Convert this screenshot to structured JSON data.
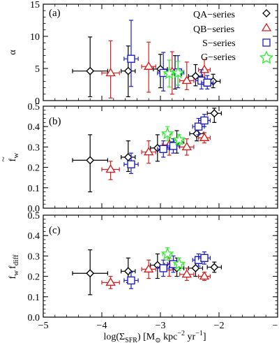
{
  "figure": {
    "xlabel": "log(Σ_SFR) [M⊙ kpc⁻² yr⁻¹]",
    "xlabel_parts": {
      "log_open": "log(Σ",
      "sub": "SFR",
      "mid": ") [M",
      "sun": "⊙",
      "unit_tail": " kpc",
      "exp2": "−2",
      "yr": " yr",
      "exp1": "−1",
      "close": "]"
    },
    "xlim": [
      -5,
      -1
    ],
    "xticks": [
      -5,
      -4,
      -3,
      -2,
      -1
    ],
    "xtick_labels": [
      "−5",
      "−4",
      "−3",
      "−2",
      "−1"
    ]
  },
  "legend": {
    "entries": [
      {
        "label": "QA−series",
        "marker": "diamond",
        "color": "#000000"
      },
      {
        "label": "QB−series",
        "marker": "triangle",
        "color": "#d42020"
      },
      {
        "label": "S−series",
        "marker": "square",
        "color": "#1c1cc8"
      },
      {
        "label": "G−series",
        "marker": "star",
        "color": "#33ee33"
      }
    ]
  },
  "colors": {
    "QA": "#000000",
    "QB": "#d42020",
    "S": "#1c1cc8",
    "G": "#33ee33"
  },
  "chart_data": [
    {
      "type": "scatter",
      "panel": "(a)",
      "ylabel": "α",
      "ylim": [
        0,
        15
      ],
      "yticks": [
        0,
        5,
        10,
        15
      ],
      "ytick_labels": [
        "0",
        "5",
        "10",
        "15"
      ],
      "series": [
        {
          "name": "QA−series",
          "points": [
            {
              "x": -4.2,
              "y": 4.6,
              "xerr": 0.3,
              "ylo": 0.6,
              "yhi": 9.9
            },
            {
              "x": -3.55,
              "y": 4.6,
              "xerr": 0.12,
              "ylo": 0.6,
              "yhi": 8.5
            },
            {
              "x": -3.0,
              "y": 4.9,
              "xerr": 0.12,
              "ylo": 2.0,
              "yhi": 7.2
            },
            {
              "x": -2.75,
              "y": 4.4,
              "xerr": 0.12,
              "ylo": 1.8,
              "yhi": 7.0
            },
            {
              "x": -2.4,
              "y": 3.8,
              "xerr": 0.12,
              "ylo": 2.3,
              "yhi": 5.6
            },
            {
              "x": -2.1,
              "y": 3.0,
              "xerr": 0.12,
              "ylo": 2.0,
              "yhi": 4.1
            }
          ]
        },
        {
          "name": "QB−series",
          "points": [
            {
              "x": -3.85,
              "y": 4.3,
              "xerr": 0.15,
              "ylo": 0.4,
              "yhi": 9.3
            },
            {
              "x": -3.2,
              "y": 5.3,
              "xerr": 0.12,
              "ylo": 1.3,
              "yhi": 9.1
            },
            {
              "x": -2.8,
              "y": 4.5,
              "xerr": 0.12,
              "ylo": 1.0,
              "yhi": 7.6
            },
            {
              "x": -2.55,
              "y": 3.1,
              "xerr": 0.12,
              "ylo": 1.7,
              "yhi": 6.0
            },
            {
              "x": -2.25,
              "y": 4.8,
              "xerr": 0.1,
              "ylo": 2.5,
              "yhi": 6.4
            }
          ]
        },
        {
          "name": "S−series",
          "points": [
            {
              "x": -3.5,
              "y": 6.5,
              "xerr": 0.12,
              "ylo": 2.2,
              "yhi": 12.5
            },
            {
              "x": -2.95,
              "y": 4.3,
              "xerr": 0.1,
              "ylo": 1.5,
              "yhi": 7.5
            },
            {
              "x": -2.7,
              "y": 4.4,
              "xerr": 0.1,
              "ylo": 2.0,
              "yhi": 7.0
            },
            {
              "x": -2.3,
              "y": 3.1,
              "xerr": 0.1,
              "ylo": 1.8,
              "yhi": 4.8
            },
            {
              "x": -2.2,
              "y": 2.8,
              "xerr": 0.1,
              "ylo": 1.8,
              "yhi": 3.9
            }
          ]
        },
        {
          "name": "G−series",
          "points": [
            {
              "x": -2.85,
              "y": 4.2,
              "xerr": 0.08,
              "ylo": 2.1,
              "yhi": 6.3
            },
            {
              "x": -2.7,
              "y": 4.3,
              "xerr": 0.08,
              "ylo": 2.4,
              "yhi": 6.1
            }
          ]
        }
      ]
    },
    {
      "type": "scatter",
      "panel": "(b)",
      "ylabel": "f̃_w",
      "ylabel_parts": {
        "base": "f",
        "tilde": "~",
        "sub": "w"
      },
      "ylim": [
        0,
        0.5
      ],
      "yticks": [
        0.0,
        0.1,
        0.2,
        0.3,
        0.4,
        0.5
      ],
      "ytick_labels": [
        "0.0",
        "0.1",
        "0.2",
        "0.3",
        "0.4",
        "0.5"
      ],
      "series": [
        {
          "name": "QA−series",
          "points": [
            {
              "x": -4.2,
              "y": 0.235,
              "xerr": 0.3,
              "ylo": 0.08,
              "yhi": 0.36
            },
            {
              "x": -3.55,
              "y": 0.25,
              "xerr": 0.12,
              "ylo": 0.18,
              "yhi": 0.33
            },
            {
              "x": -3.05,
              "y": 0.295,
              "xerr": 0.12,
              "ylo": 0.23,
              "yhi": 0.36
            },
            {
              "x": -2.72,
              "y": 0.325,
              "xerr": 0.12,
              "ylo": 0.27,
              "yhi": 0.38
            },
            {
              "x": -2.38,
              "y": 0.365,
              "xerr": 0.12,
              "ylo": 0.33,
              "yhi": 0.41
            },
            {
              "x": -2.08,
              "y": 0.465,
              "xerr": 0.12,
              "ylo": 0.42,
              "yhi": 0.49
            }
          ]
        },
        {
          "name": "QB−series",
          "points": [
            {
              "x": -3.85,
              "y": 0.19,
              "xerr": 0.15,
              "ylo": 0.14,
              "yhi": 0.23
            },
            {
              "x": -3.2,
              "y": 0.275,
              "xerr": 0.12,
              "ylo": 0.22,
              "yhi": 0.33
            },
            {
              "x": -2.85,
              "y": 0.31,
              "xerr": 0.12,
              "ylo": 0.26,
              "yhi": 0.36
            },
            {
              "x": -2.55,
              "y": 0.3,
              "xerr": 0.12,
              "ylo": 0.26,
              "yhi": 0.34
            },
            {
              "x": -2.25,
              "y": 0.345,
              "xerr": 0.1,
              "ylo": 0.32,
              "yhi": 0.37
            }
          ]
        },
        {
          "name": "S−series",
          "points": [
            {
              "x": -3.5,
              "y": 0.215,
              "xerr": 0.12,
              "ylo": 0.17,
              "yhi": 0.27
            },
            {
              "x": -2.95,
              "y": 0.29,
              "xerr": 0.1,
              "ylo": 0.25,
              "yhi": 0.33
            },
            {
              "x": -2.78,
              "y": 0.305,
              "xerr": 0.1,
              "ylo": 0.27,
              "yhi": 0.34
            },
            {
              "x": -2.35,
              "y": 0.4,
              "xerr": 0.1,
              "ylo": 0.36,
              "yhi": 0.44
            },
            {
              "x": -2.25,
              "y": 0.43,
              "xerr": 0.1,
              "ylo": 0.4,
              "yhi": 0.46
            }
          ]
        },
        {
          "name": "G−series",
          "points": [
            {
              "x": -2.88,
              "y": 0.365,
              "xerr": 0.08,
              "ylo": 0.33,
              "yhi": 0.4
            },
            {
              "x": -2.68,
              "y": 0.335,
              "xerr": 0.08,
              "ylo": 0.31,
              "yhi": 0.36
            }
          ]
        }
      ]
    },
    {
      "type": "scatter",
      "panel": "(c)",
      "ylabel": "f_w f_diff",
      "ylabel_parts": {
        "f1": "f",
        "sub1": "w",
        "f2": "f",
        "sub2": "diff"
      },
      "ylim": [
        0,
        0.5
      ],
      "yticks": [
        0.0,
        0.1,
        0.2,
        0.3,
        0.4,
        0.5
      ],
      "ytick_labels": [
        "0.0",
        "0.1",
        "0.2",
        "0.3",
        "0.4",
        "0.5"
      ],
      "series": [
        {
          "name": "QA−series",
          "points": [
            {
              "x": -4.2,
              "y": 0.215,
              "xerr": 0.3,
              "ylo": 0.11,
              "yhi": 0.33
            },
            {
              "x": -3.55,
              "y": 0.225,
              "xerr": 0.12,
              "ylo": 0.17,
              "yhi": 0.29
            },
            {
              "x": -3.05,
              "y": 0.255,
              "xerr": 0.12,
              "ylo": 0.19,
              "yhi": 0.31
            },
            {
              "x": -2.72,
              "y": 0.24,
              "xerr": 0.12,
              "ylo": 0.2,
              "yhi": 0.29
            },
            {
              "x": -2.4,
              "y": 0.24,
              "xerr": 0.12,
              "ylo": 0.2,
              "yhi": 0.28
            },
            {
              "x": -2.08,
              "y": 0.245,
              "xerr": 0.12,
              "ylo": 0.22,
              "yhi": 0.27
            }
          ]
        },
        {
          "name": "QB−series",
          "points": [
            {
              "x": -3.85,
              "y": 0.17,
              "xerr": 0.15,
              "ylo": 0.14,
              "yhi": 0.2
            },
            {
              "x": -3.2,
              "y": 0.235,
              "xerr": 0.12,
              "ylo": 0.19,
              "yhi": 0.28
            },
            {
              "x": -2.85,
              "y": 0.245,
              "xerr": 0.12,
              "ylo": 0.2,
              "yhi": 0.29
            },
            {
              "x": -2.55,
              "y": 0.21,
              "xerr": 0.12,
              "ylo": 0.18,
              "yhi": 0.24
            },
            {
              "x": -2.25,
              "y": 0.2,
              "xerr": 0.1,
              "ylo": 0.18,
              "yhi": 0.22
            }
          ]
        },
        {
          "name": "S−series",
          "points": [
            {
              "x": -3.5,
              "y": 0.18,
              "xerr": 0.12,
              "ylo": 0.14,
              "yhi": 0.22
            },
            {
              "x": -2.95,
              "y": 0.24,
              "xerr": 0.1,
              "ylo": 0.2,
              "yhi": 0.28
            },
            {
              "x": -2.78,
              "y": 0.26,
              "xerr": 0.1,
              "ylo": 0.22,
              "yhi": 0.3
            },
            {
              "x": -2.35,
              "y": 0.28,
              "xerr": 0.1,
              "ylo": 0.25,
              "yhi": 0.31
            },
            {
              "x": -2.25,
              "y": 0.29,
              "xerr": 0.1,
              "ylo": 0.26,
              "yhi": 0.32
            }
          ]
        },
        {
          "name": "G−series",
          "points": [
            {
              "x": -2.88,
              "y": 0.31,
              "xerr": 0.08,
              "ylo": 0.28,
              "yhi": 0.34
            },
            {
              "x": -2.68,
              "y": 0.26,
              "xerr": 0.08,
              "ylo": 0.23,
              "yhi": 0.29
            }
          ]
        }
      ]
    }
  ]
}
